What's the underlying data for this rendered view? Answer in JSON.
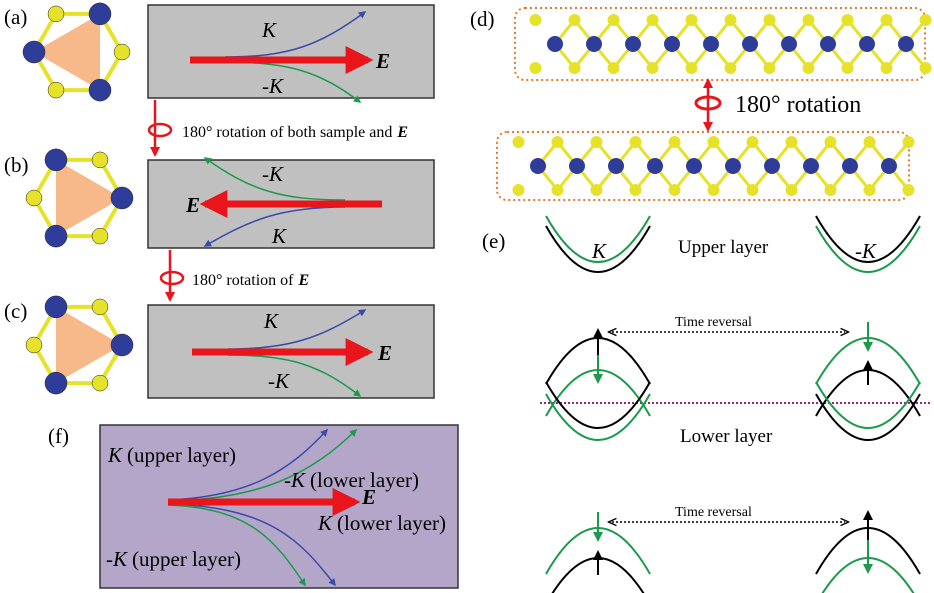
{
  "panels": {
    "a": {
      "label": "(a)",
      "k_upper": "K",
      "k_lower": "-K",
      "field": "E"
    },
    "b": {
      "label": "(b)",
      "k_upper": "-K",
      "k_lower": "K",
      "field": "E"
    },
    "c": {
      "label": "(c)",
      "k_upper": "K",
      "k_lower": "-K",
      "field": "E"
    },
    "d": {
      "label": "(d)",
      "rotation": "180° rotation"
    },
    "e": {
      "label": "(e)",
      "valley_left": "K",
      "valley_right": "-K",
      "upper_layer": "Upper layer",
      "lower_layer": "Lower layer",
      "time_reversal": [
        "Time reversal",
        "Time reversal"
      ]
    },
    "f": {
      "label": "(f)",
      "field": "E",
      "branches": [
        {
          "valley": "K",
          "layer": "(upper layer)"
        },
        {
          "valley": "-K",
          "layer": "(lower layer)"
        },
        {
          "valley": "K",
          "layer": "(lower layer)"
        },
        {
          "valley": "-K",
          "layer": "(upper layer)"
        }
      ]
    }
  },
  "rotations": [
    {
      "text": "180° rotation of both sample and",
      "field": "E"
    },
    {
      "text": "180° rotation of",
      "field": "E"
    }
  ]
}
